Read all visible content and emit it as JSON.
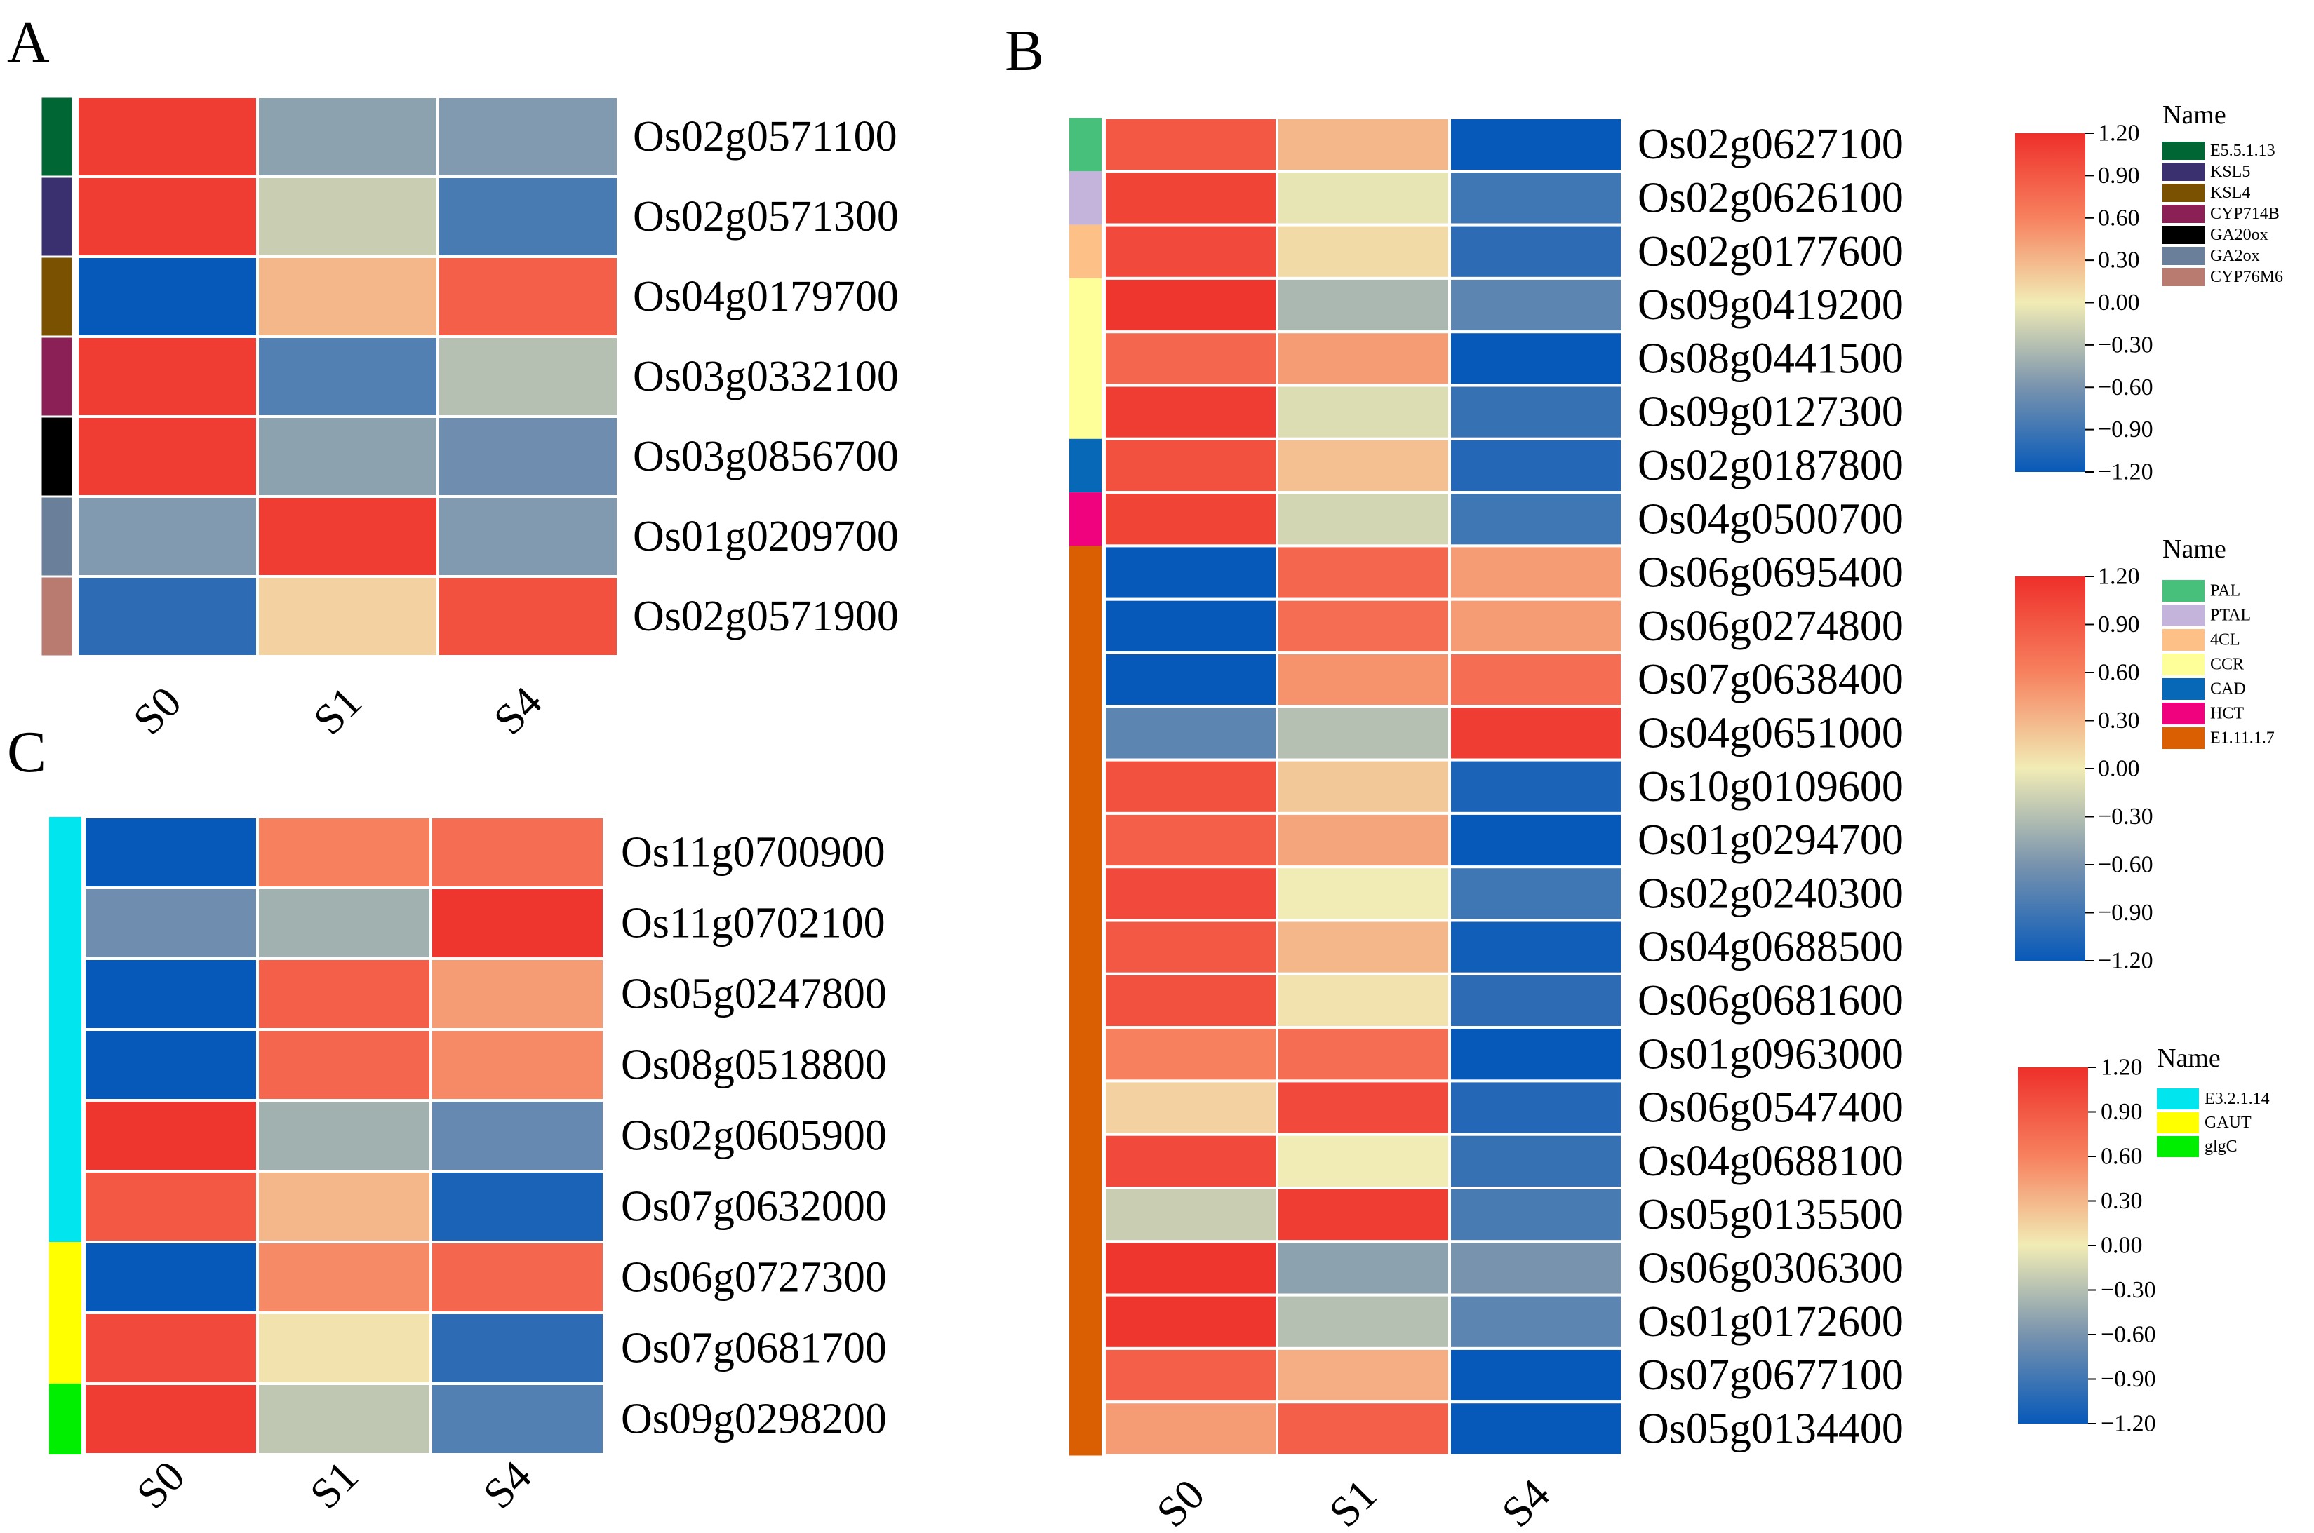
{
  "chart_data": [
    {
      "type": "heatmap",
      "panel": "A",
      "columns": [
        "S0",
        "S1",
        "S4"
      ],
      "rows": [
        {
          "gene": "Os02g0571100",
          "group": "E5.5.1.13",
          "values": [
            1.1,
            -0.5,
            -0.55
          ]
        },
        {
          "gene": "Os02g0571300",
          "group": "KSL5",
          "values": [
            1.1,
            -0.2,
            -0.85
          ]
        },
        {
          "gene": "Os04g0179700",
          "group": "KSL4",
          "values": [
            -1.2,
            0.3,
            0.85
          ]
        },
        {
          "gene": "Os03g0332100",
          "group": "CYP714B",
          "values": [
            1.1,
            -0.8,
            -0.3
          ]
        },
        {
          "gene": "Os03g0856700",
          "group": "GA20ox",
          "values": [
            1.1,
            -0.5,
            -0.65
          ]
        },
        {
          "gene": "Os01g0209700",
          "group": "GA2ox",
          "values": [
            -0.55,
            1.1,
            -0.55
          ]
        },
        {
          "gene": "Os02g0571900",
          "group": "CYP76M6",
          "values": [
            -1.0,
            0.15,
            0.95
          ]
        }
      ],
      "groups": [
        {
          "name": "E5.5.1.13",
          "color": "#006633"
        },
        {
          "name": "KSL5",
          "color": "#3A2F6F"
        },
        {
          "name": "KSL4",
          "color": "#7A5100"
        },
        {
          "name": "CYP714B",
          "color": "#8B2056"
        },
        {
          "name": "GA20ox",
          "color": "#000000"
        },
        {
          "name": "GA2ox",
          "color": "#6A7F99"
        },
        {
          "name": "CYP76M6",
          "color": "#B97A70"
        }
      ],
      "color_scale": {
        "min": -1.2,
        "max": 1.2
      }
    },
    {
      "type": "heatmap",
      "panel": "B",
      "columns": [
        "S0",
        "S1",
        "S4"
      ],
      "rows": [
        {
          "gene": "Os02g0627100",
          "group": "PAL",
          "values": [
            0.9,
            0.3,
            -1.2
          ]
        },
        {
          "gene": "Os02g0626100",
          "group": "PTAL",
          "values": [
            1.05,
            -0.05,
            -0.9
          ]
        },
        {
          "gene": "Os02g0177600",
          "group": "4CL",
          "values": [
            1.0,
            0.1,
            -1.0
          ]
        },
        {
          "gene": "Os09g0419200",
          "group": "CCR",
          "values": [
            1.15,
            -0.35,
            -0.75
          ]
        },
        {
          "gene": "Os08g0441500",
          "group": "CCR",
          "values": [
            0.8,
            0.45,
            -1.2
          ]
        },
        {
          "gene": "Os09g0127300",
          "group": "CCR",
          "values": [
            1.1,
            -0.1,
            -0.95
          ]
        },
        {
          "gene": "Os02g0187800",
          "group": "CAD",
          "values": [
            0.95,
            0.25,
            -1.05
          ]
        },
        {
          "gene": "Os04g0500700",
          "group": "HCT",
          "values": [
            1.05,
            -0.15,
            -0.9
          ]
        },
        {
          "gene": "Os06g0695400",
          "group": "E1.11.1.7",
          "values": [
            -1.2,
            0.8,
            0.45
          ]
        },
        {
          "gene": "Os06g0274800",
          "group": "E1.11.1.7",
          "values": [
            -1.2,
            0.75,
            0.45
          ]
        },
        {
          "gene": "Os07g0638400",
          "group": "E1.11.1.7",
          "values": [
            -1.2,
            0.5,
            0.75
          ]
        },
        {
          "gene": "Os04g0651000",
          "group": "E1.11.1.7",
          "values": [
            -0.75,
            -0.3,
            1.1
          ]
        },
        {
          "gene": "Os10g0109600",
          "group": "E1.11.1.7",
          "values": [
            0.95,
            0.2,
            -1.1
          ]
        },
        {
          "gene": "Os01g0294700",
          "group": "E1.11.1.7",
          "values": [
            0.85,
            0.4,
            -1.2
          ]
        },
        {
          "gene": "Os02g0240300",
          "group": "E1.11.1.7",
          "values": [
            1.0,
            0.0,
            -0.9
          ]
        },
        {
          "gene": "Os04g0688500",
          "group": "E1.11.1.7",
          "values": [
            0.9,
            0.3,
            -1.15
          ]
        },
        {
          "gene": "Os06g0681600",
          "group": "E1.11.1.7",
          "values": [
            0.95,
            0.05,
            -1.0
          ]
        },
        {
          "gene": "Os01g0963000",
          "group": "E1.11.1.7",
          "values": [
            0.6,
            0.75,
            -1.2
          ]
        },
        {
          "gene": "Os06g0547400",
          "group": "E1.11.1.7",
          "values": [
            0.15,
            1.0,
            -1.05
          ]
        },
        {
          "gene": "Os04g0688100",
          "group": "E1.11.1.7",
          "values": [
            1.0,
            0.0,
            -0.95
          ]
        },
        {
          "gene": "Os05g0135500",
          "group": "E1.11.1.7",
          "values": [
            -0.2,
            1.1,
            -0.85
          ]
        },
        {
          "gene": "Os06g0306300",
          "group": "E1.11.1.7",
          "values": [
            1.15,
            -0.5,
            -0.6
          ]
        },
        {
          "gene": "Os01g0172600",
          "group": "E1.11.1.7",
          "values": [
            1.15,
            -0.3,
            -0.75
          ]
        },
        {
          "gene": "Os07g0677100",
          "group": "E1.11.1.7",
          "values": [
            0.85,
            0.35,
            -1.2
          ]
        },
        {
          "gene": "Os05g0134400",
          "group": "E1.11.1.7",
          "values": [
            0.45,
            0.85,
            -1.2
          ]
        }
      ],
      "groups": [
        {
          "name": "PAL",
          "color": "#46C07A"
        },
        {
          "name": "PTAL",
          "color": "#C4B4DC"
        },
        {
          "name": "4CL",
          "color": "#FDC086"
        },
        {
          "name": "CCR",
          "color": "#FFFF99"
        },
        {
          "name": "CAD",
          "color": "#0868B8"
        },
        {
          "name": "HCT",
          "color": "#F0027F"
        },
        {
          "name": "E1.11.1.7",
          "color": "#D95F02"
        }
      ],
      "color_scale": {
        "min": -1.2,
        "max": 1.2
      }
    },
    {
      "type": "heatmap",
      "panel": "C",
      "columns": [
        "S0",
        "S1",
        "S4"
      ],
      "rows": [
        {
          "gene": "Os11g0700900",
          "group": "E3.2.1.14",
          "values": [
            -1.2,
            0.6,
            0.75
          ]
        },
        {
          "gene": "Os11g0702100",
          "group": "E3.2.1.14",
          "values": [
            -0.65,
            -0.4,
            1.15
          ]
        },
        {
          "gene": "Os05g0247800",
          "group": "E3.2.1.14",
          "values": [
            -1.2,
            0.85,
            0.45
          ]
        },
        {
          "gene": "Os08g0518800",
          "group": "E3.2.1.14",
          "values": [
            -1.2,
            0.8,
            0.55
          ]
        },
        {
          "gene": "Os02g0605900",
          "group": "E3.2.1.14",
          "values": [
            1.15,
            -0.4,
            -0.7
          ]
        },
        {
          "gene": "Os07g0632000",
          "group": "E3.2.1.14",
          "values": [
            0.9,
            0.3,
            -1.1
          ]
        },
        {
          "gene": "Os06g0727300",
          "group": "GAUT",
          "values": [
            -1.2,
            0.55,
            0.8
          ]
        },
        {
          "gene": "Os07g0681700",
          "group": "GAUT",
          "values": [
            1.0,
            0.05,
            -1.0
          ]
        },
        {
          "gene": "Os09g0298200",
          "group": "glgC",
          "values": [
            1.1,
            -0.25,
            -0.8
          ]
        }
      ],
      "groups": [
        {
          "name": "E3.2.1.14",
          "color": "#00E5EE"
        },
        {
          "name": "GAUT",
          "color": "#FFFF00"
        },
        {
          "name": "glgC",
          "color": "#00EE00"
        }
      ],
      "color_scale": {
        "min": -1.2,
        "max": 1.2
      }
    }
  ],
  "panel_letters": {
    "a": "A",
    "b": "B",
    "c": "C"
  },
  "legend_title": "Name",
  "tick_labels": [
    "1.20",
    "0.90",
    "0.60",
    "0.30",
    "0.00",
    "−0.30",
    "−0.60",
    "−0.90",
    "−1.20"
  ]
}
